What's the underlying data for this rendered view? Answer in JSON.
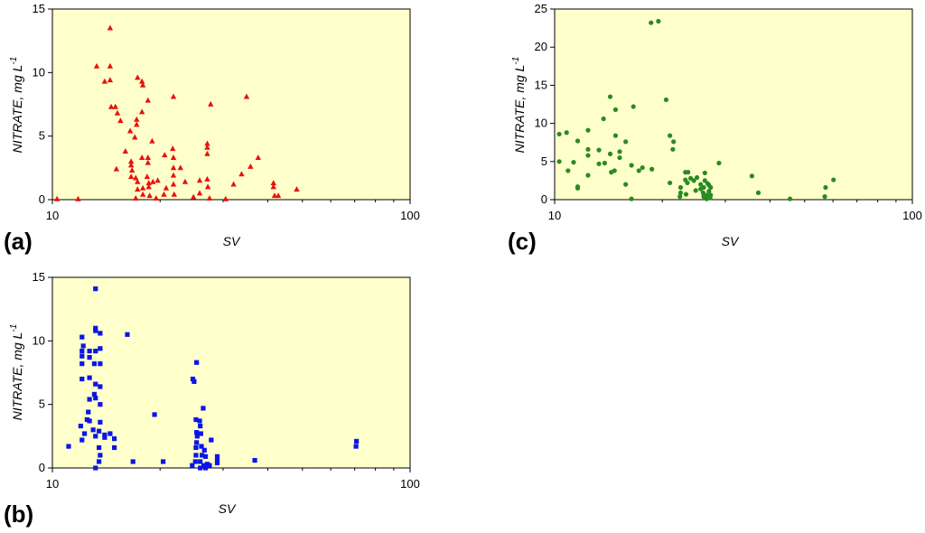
{
  "chart_data": [
    {
      "type": "scatter",
      "panel_label": "(a)",
      "xlabel": "SV",
      "ylabel_main": "NITRATE, mg L",
      "ylabel_sup": "-1",
      "xscale": "log",
      "xlim": [
        10,
        100
      ],
      "ylim": [
        0,
        15
      ],
      "xticks": [
        10,
        100
      ],
      "yticks": [
        0,
        5,
        10,
        15
      ],
      "marker": "triangle",
      "color": "#e8120c",
      "background": "#ffffcc",
      "points": [
        [
          10.3,
          0.05
        ],
        [
          11.8,
          0.05
        ],
        [
          13.3,
          10.5
        ],
        [
          14.0,
          9.3
        ],
        [
          14.5,
          13.5
        ],
        [
          14.5,
          10.5
        ],
        [
          14.5,
          9.4
        ],
        [
          14.6,
          7.3
        ],
        [
          15.0,
          7.3
        ],
        [
          15.2,
          6.8
        ],
        [
          15.1,
          2.4
        ],
        [
          15.5,
          6.2
        ],
        [
          16.0,
          3.8
        ],
        [
          16.5,
          5.4
        ],
        [
          16.6,
          3.0
        ],
        [
          16.6,
          2.7
        ],
        [
          16.7,
          2.3
        ],
        [
          16.6,
          1.8
        ],
        [
          17.0,
          4.9
        ],
        [
          17.3,
          9.6
        ],
        [
          17.2,
          6.3
        ],
        [
          17.2,
          5.9
        ],
        [
          17.1,
          1.7
        ],
        [
          17.3,
          1.4
        ],
        [
          17.3,
          0.8
        ],
        [
          17.1,
          0.1
        ],
        [
          17.8,
          9.3
        ],
        [
          17.9,
          9.0
        ],
        [
          17.8,
          6.9
        ],
        [
          17.8,
          3.3
        ],
        [
          17.9,
          0.9
        ],
        [
          17.9,
          0.4
        ],
        [
          18.5,
          7.8
        ],
        [
          18.5,
          3.3
        ],
        [
          18.5,
          2.9
        ],
        [
          18.4,
          1.8
        ],
        [
          18.6,
          1.3
        ],
        [
          18.6,
          1.0
        ],
        [
          18.7,
          0.3
        ],
        [
          19.0,
          4.6
        ],
        [
          19.1,
          1.4
        ],
        [
          19.7,
          1.5
        ],
        [
          19.5,
          0.1
        ],
        [
          20.6,
          3.5
        ],
        [
          20.8,
          0.9
        ],
        [
          20.5,
          0.4
        ],
        [
          21.8,
          8.1
        ],
        [
          21.7,
          4.0
        ],
        [
          21.8,
          3.3
        ],
        [
          21.8,
          2.5
        ],
        [
          21.8,
          1.9
        ],
        [
          21.8,
          1.2
        ],
        [
          21.9,
          0.4
        ],
        [
          22.8,
          2.5
        ],
        [
          23.5,
          1.4
        ],
        [
          24.8,
          0.2
        ],
        [
          25.8,
          1.5
        ],
        [
          25.8,
          0.5
        ],
        [
          27.1,
          4.4
        ],
        [
          27.1,
          4.1
        ],
        [
          27.1,
          3.6
        ],
        [
          27.1,
          1.6
        ],
        [
          27.2,
          1.0
        ],
        [
          27.7,
          7.5
        ],
        [
          27.5,
          0.1
        ],
        [
          30.5,
          0.05
        ],
        [
          32.1,
          1.2
        ],
        [
          33.8,
          2.0
        ],
        [
          34.9,
          8.1
        ],
        [
          35.8,
          2.6
        ],
        [
          37.6,
          3.3
        ],
        [
          41.5,
          1.3
        ],
        [
          41.5,
          1.0
        ],
        [
          41.8,
          0.3
        ],
        [
          42.8,
          0.3
        ],
        [
          48.2,
          0.8
        ]
      ]
    },
    {
      "type": "scatter",
      "panel_label": "(b)",
      "xlabel": "SV",
      "ylabel_main": "NITRATE, mg L",
      "ylabel_sup": "-1",
      "xscale": "log",
      "xlim": [
        10,
        100
      ],
      "ylim": [
        0,
        15
      ],
      "xticks": [
        10,
        100
      ],
      "yticks": [
        0,
        5,
        10,
        15
      ],
      "marker": "square",
      "color": "#0b15e8",
      "background": "#ffffcc",
      "points": [
        [
          11.1,
          1.7
        ],
        [
          12.1,
          10.3
        ],
        [
          12.2,
          9.6
        ],
        [
          12.1,
          9.2
        ],
        [
          12.1,
          8.8
        ],
        [
          12.1,
          8.2
        ],
        [
          12.1,
          7.0
        ],
        [
          12.0,
          3.3
        ],
        [
          12.1,
          2.2
        ],
        [
          12.3,
          2.7
        ],
        [
          12.5,
          3.8
        ],
        [
          12.7,
          9.2
        ],
        [
          12.7,
          8.7
        ],
        [
          12.7,
          7.1
        ],
        [
          12.7,
          5.4
        ],
        [
          12.6,
          4.4
        ],
        [
          12.7,
          3.7
        ],
        [
          13.2,
          14.1
        ],
        [
          13.2,
          11.0
        ],
        [
          13.2,
          10.8
        ],
        [
          13.2,
          9.2
        ],
        [
          13.1,
          8.2
        ],
        [
          13.2,
          6.6
        ],
        [
          13.1,
          5.8
        ],
        [
          13.2,
          5.5
        ],
        [
          13.0,
          3.0
        ],
        [
          13.2,
          2.5
        ],
        [
          13.2,
          0.0
        ],
        [
          13.6,
          10.6
        ],
        [
          13.6,
          9.4
        ],
        [
          13.6,
          8.2
        ],
        [
          13.6,
          6.4
        ],
        [
          13.6,
          5.0
        ],
        [
          13.6,
          3.6
        ],
        [
          13.5,
          2.9
        ],
        [
          13.5,
          1.6
        ],
        [
          13.6,
          1.0
        ],
        [
          13.5,
          0.5
        ],
        [
          14.0,
          2.4
        ],
        [
          14.0,
          2.6
        ],
        [
          14.5,
          2.7
        ],
        [
          14.9,
          2.3
        ],
        [
          14.9,
          1.6
        ],
        [
          16.2,
          10.5
        ],
        [
          16.8,
          0.5
        ],
        [
          19.3,
          4.2
        ],
        [
          20.4,
          0.5
        ],
        [
          24.7,
          7.0
        ],
        [
          24.9,
          6.8
        ],
        [
          25.3,
          8.3
        ],
        [
          25.2,
          3.8
        ],
        [
          25.3,
          2.8
        ],
        [
          25.4,
          2.5
        ],
        [
          25.3,
          2.0
        ],
        [
          25.2,
          1.6
        ],
        [
          25.2,
          1.0
        ],
        [
          25.1,
          0.5
        ],
        [
          24.6,
          0.2
        ],
        [
          25.8,
          3.7
        ],
        [
          25.9,
          3.3
        ],
        [
          26.0,
          2.7
        ],
        [
          26.1,
          1.7
        ],
        [
          26.2,
          1.0
        ],
        [
          25.9,
          0.5
        ],
        [
          25.9,
          0.0
        ],
        [
          26.4,
          4.7
        ],
        [
          26.6,
          1.4
        ],
        [
          26.8,
          0.9
        ],
        [
          26.5,
          0.2
        ],
        [
          27.1,
          0.3
        ],
        [
          26.8,
          0.0
        ],
        [
          27.8,
          2.2
        ],
        [
          27.5,
          0.2
        ],
        [
          28.9,
          0.9
        ],
        [
          28.9,
          0.6
        ],
        [
          28.9,
          0.4
        ],
        [
          36.8,
          0.6
        ],
        [
          70.8,
          2.1
        ],
        [
          70.6,
          1.7
        ]
      ]
    },
    {
      "type": "scatter",
      "panel_label": "(c)",
      "xlabel": "SV",
      "ylabel_main": "NITRATE, mg L",
      "ylabel_sup": "-1",
      "xscale": "log",
      "xlim": [
        10,
        100
      ],
      "ylim": [
        0,
        25
      ],
      "xticks": [
        10,
        100
      ],
      "yticks": [
        0,
        5,
        10,
        15,
        20,
        25
      ],
      "marker": "circle",
      "color": "#2a8a22",
      "background": "#ffffcc",
      "points": [
        [
          10.3,
          8.6
        ],
        [
          10.3,
          5.0
        ],
        [
          10.8,
          8.8
        ],
        [
          10.9,
          3.8
        ],
        [
          11.3,
          4.9
        ],
        [
          11.6,
          7.7
        ],
        [
          11.6,
          1.7
        ],
        [
          11.6,
          1.5
        ],
        [
          12.4,
          9.1
        ],
        [
          12.4,
          6.6
        ],
        [
          12.4,
          5.8
        ],
        [
          12.4,
          3.2
        ],
        [
          13.3,
          6.5
        ],
        [
          13.3,
          4.7
        ],
        [
          13.7,
          10.6
        ],
        [
          13.8,
          4.8
        ],
        [
          14.3,
          13.5
        ],
        [
          14.3,
          6.0
        ],
        [
          14.4,
          3.6
        ],
        [
          14.8,
          11.8
        ],
        [
          14.8,
          8.4
        ],
        [
          14.7,
          3.8
        ],
        [
          15.2,
          6.3
        ],
        [
          15.2,
          5.5
        ],
        [
          15.8,
          7.6
        ],
        [
          15.8,
          2.0
        ],
        [
          16.6,
          12.2
        ],
        [
          16.4,
          4.5
        ],
        [
          16.4,
          0.1
        ],
        [
          17.2,
          3.8
        ],
        [
          17.6,
          4.2
        ],
        [
          18.6,
          23.2
        ],
        [
          19.5,
          23.4
        ],
        [
          18.7,
          4.0
        ],
        [
          20.5,
          13.1
        ],
        [
          21.0,
          8.4
        ],
        [
          21.5,
          7.6
        ],
        [
          21.4,
          6.6
        ],
        [
          21.0,
          2.2
        ],
        [
          22.5,
          1.6
        ],
        [
          22.5,
          0.9
        ],
        [
          22.4,
          0.4
        ],
        [
          23.2,
          3.6
        ],
        [
          23.6,
          3.6
        ],
        [
          23.2,
          2.6
        ],
        [
          23.5,
          2.2
        ],
        [
          23.3,
          0.7
        ],
        [
          24.0,
          2.8
        ],
        [
          24.5,
          2.5
        ],
        [
          24.8,
          1.2
        ],
        [
          25.0,
          2.9
        ],
        [
          25.6,
          2.0
        ],
        [
          25.6,
          1.4
        ],
        [
          26.3,
          3.5
        ],
        [
          26.3,
          2.5
        ],
        [
          26.1,
          1.6
        ],
        [
          26.0,
          0.9
        ],
        [
          26.1,
          0.4
        ],
        [
          26.8,
          2.1
        ],
        [
          27.0,
          1.9
        ],
        [
          27.3,
          1.6
        ],
        [
          27.0,
          1.1
        ],
        [
          26.6,
          0.6
        ],
        [
          27.3,
          0.6
        ],
        [
          27.2,
          0.2
        ],
        [
          26.6,
          0.1
        ],
        [
          28.8,
          4.8
        ],
        [
          35.6,
          3.1
        ],
        [
          37.1,
          0.9
        ],
        [
          45.5,
          0.1
        ],
        [
          57.2,
          1.6
        ],
        [
          56.9,
          0.4
        ],
        [
          60.2,
          2.6
        ]
      ]
    }
  ]
}
